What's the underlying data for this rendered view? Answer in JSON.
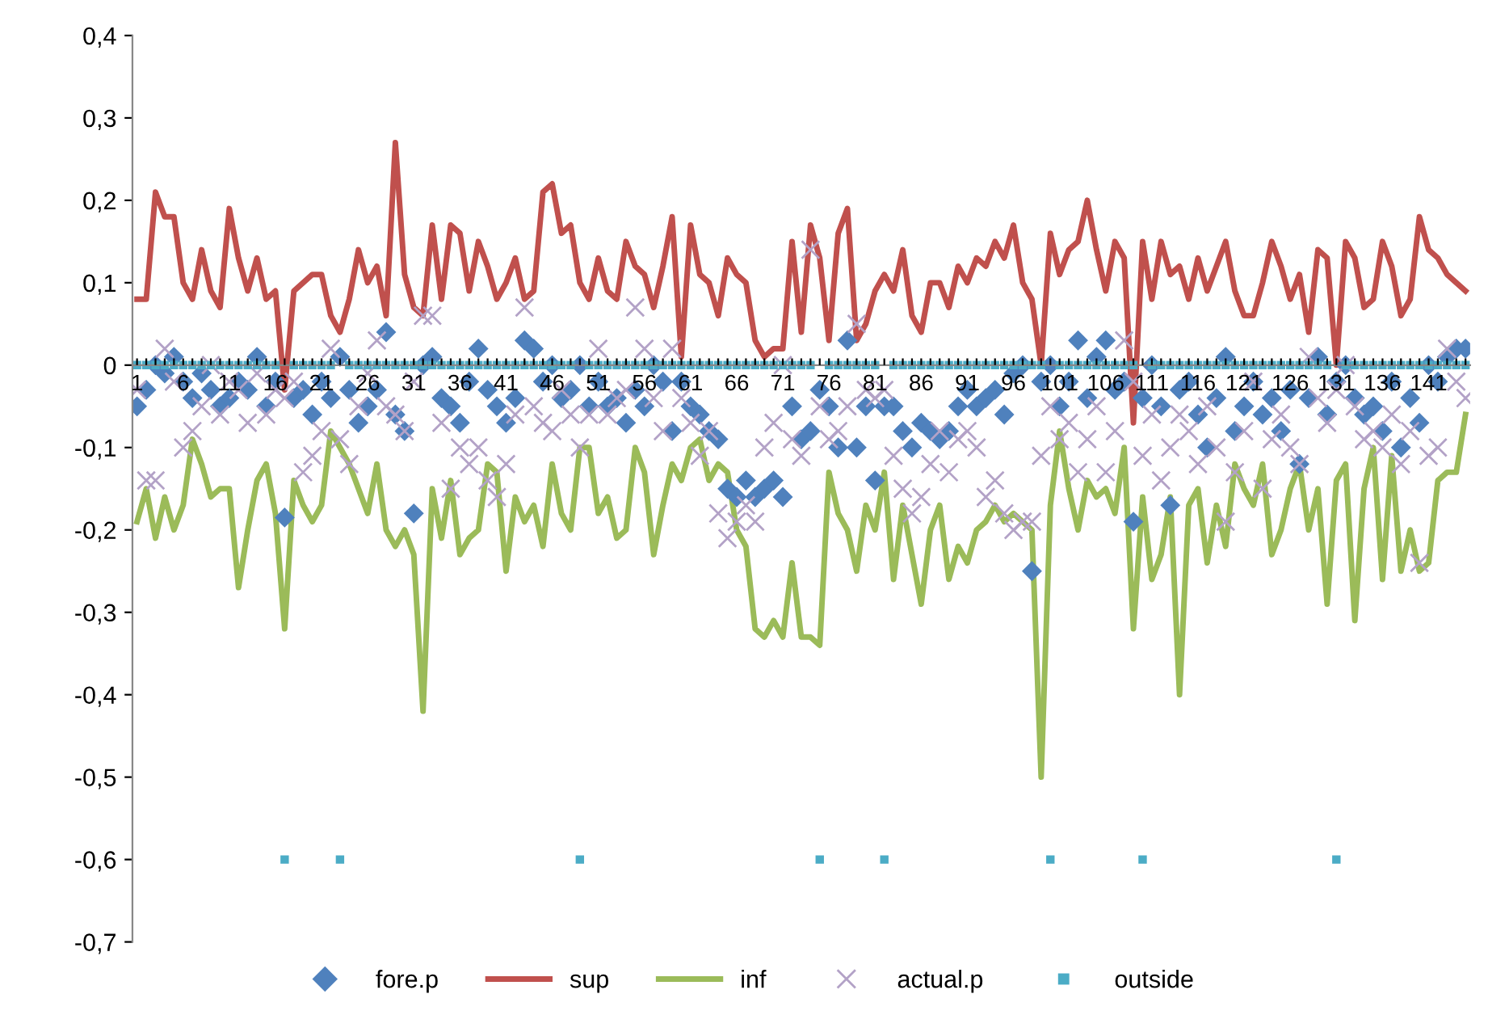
{
  "chart_data": {
    "type": "line",
    "categories": [
      "1",
      null,
      null,
      null,
      null,
      "6",
      null,
      null,
      null,
      null,
      "11",
      null,
      null,
      null,
      null,
      "16",
      null,
      null,
      null,
      null,
      "21",
      null,
      null,
      null,
      null,
      "26",
      null,
      null,
      null,
      null,
      "31",
      null,
      null,
      null,
      null,
      "36",
      null,
      null,
      null,
      null,
      "41",
      null,
      null,
      null,
      null,
      "46",
      null,
      null,
      null,
      null,
      "51",
      null,
      null,
      null,
      null,
      "56",
      null,
      null,
      null,
      null,
      "61",
      null,
      null,
      null,
      null,
      "66",
      null,
      null,
      null,
      null,
      "71",
      null,
      null,
      null,
      null,
      "76",
      null,
      null,
      null,
      null,
      "81",
      null,
      null,
      null,
      null,
      "86",
      null,
      null,
      null,
      null,
      "91",
      null,
      null,
      null,
      null,
      "96",
      null,
      null,
      null,
      null,
      "101",
      null,
      null,
      null,
      null,
      "106",
      null,
      null,
      null,
      null,
      "111",
      null,
      null,
      null,
      null,
      "116",
      null,
      null,
      null,
      null,
      "121",
      null,
      null,
      null,
      null,
      "126",
      null,
      null,
      null,
      null,
      "131",
      null,
      null,
      null,
      null,
      "136",
      null,
      null,
      null,
      null,
      "141",
      null,
      null,
      null,
      null
    ],
    "ylim": [
      -0.7,
      0.4
    ],
    "yticks": [
      {
        "value": -0.7,
        "label": "-0,7"
      },
      {
        "value": -0.6,
        "label": "-0,6"
      },
      {
        "value": -0.5,
        "label": "-0,5"
      },
      {
        "value": -0.4,
        "label": "-0,4"
      },
      {
        "value": -0.3,
        "label": "-0,3"
      },
      {
        "value": -0.2,
        "label": "-0,2"
      },
      {
        "value": -0.1,
        "label": "-0,1"
      },
      0,
      {
        "value": 0.1,
        "label": "0,1"
      },
      {
        "value": 0.2,
        "label": "0,2"
      },
      {
        "value": 0.3,
        "label": "0,3"
      },
      {
        "value": 0.4,
        "label": "0,4"
      }
    ],
    "grid": false,
    "legend": "bottom",
    "series": [
      {
        "name": "fore.p",
        "type": "scatter",
        "marker": "diamond",
        "color": "#4f81bd",
        "values": [
          -0.05,
          -0.03,
          0.0,
          -0.01,
          0.01,
          -0.02,
          -0.04,
          -0.01,
          -0.03,
          -0.05,
          -0.04,
          -0.02,
          -0.03,
          0.01,
          -0.05,
          -0.02,
          -0.185,
          -0.04,
          -0.03,
          -0.06,
          -0.02,
          -0.04,
          0.01,
          -0.03,
          -0.07,
          -0.05,
          -0.03,
          0.04,
          -0.06,
          -0.08,
          -0.18,
          0.0,
          0.01,
          -0.04,
          -0.05,
          -0.07,
          -0.02,
          0.02,
          -0.03,
          -0.05,
          -0.07,
          -0.04,
          0.03,
          0.02,
          -0.02,
          0.0,
          -0.04,
          -0.03,
          0.0,
          -0.05,
          -0.02,
          -0.05,
          -0.04,
          -0.07,
          -0.03,
          -0.05,
          0.0,
          -0.02,
          -0.08,
          -0.02,
          -0.05,
          -0.06,
          -0.08,
          -0.09,
          -0.15,
          -0.16,
          -0.14,
          -0.16,
          -0.15,
          -0.14,
          -0.16,
          -0.05,
          -0.09,
          -0.08,
          -0.03,
          -0.05,
          -0.1,
          0.03,
          -0.1,
          -0.05,
          -0.14,
          -0.05,
          -0.05,
          -0.08,
          -0.1,
          -0.07,
          -0.08,
          -0.09,
          -0.08,
          -0.05,
          -0.03,
          -0.05,
          -0.04,
          -0.03,
          -0.06,
          -0.01,
          0.0,
          -0.25,
          -0.02,
          0.0,
          -0.05,
          -0.02,
          0.03,
          -0.04,
          0.01,
          0.03,
          -0.03,
          -0.02,
          -0.19,
          -0.04,
          0.0,
          -0.05,
          -0.17,
          -0.03,
          -0.02,
          -0.06,
          -0.1,
          -0.04,
          0.01,
          -0.08,
          -0.05,
          -0.02,
          -0.06,
          -0.04,
          -0.08,
          -0.03,
          -0.12,
          -0.04,
          0.01,
          -0.06,
          -0.02,
          0.0,
          -0.04,
          -0.06,
          -0.05,
          -0.08,
          -0.02,
          -0.1,
          -0.04,
          -0.07,
          0.0,
          -0.02,
          0.01,
          0.02,
          0.02
        ]
      },
      {
        "name": "sup",
        "color": "#c0504d",
        "values": [
          0.08,
          0.08,
          0.21,
          0.18,
          0.18,
          0.1,
          0.08,
          0.14,
          0.09,
          0.07,
          0.19,
          0.13,
          0.09,
          0.13,
          0.08,
          0.09,
          -0.03,
          0.09,
          0.1,
          0.11,
          0.11,
          0.06,
          0.04,
          0.08,
          0.14,
          0.1,
          0.12,
          0.06,
          0.27,
          0.11,
          0.07,
          0.06,
          0.17,
          0.08,
          0.17,
          0.16,
          0.09,
          0.15,
          0.12,
          0.08,
          0.1,
          0.13,
          0.08,
          0.09,
          0.21,
          0.22,
          0.16,
          0.17,
          0.1,
          0.08,
          0.13,
          0.09,
          0.08,
          0.15,
          0.12,
          0.11,
          0.07,
          0.12,
          0.18,
          0.01,
          0.17,
          0.11,
          0.1,
          0.06,
          0.13,
          0.11,
          0.1,
          0.03,
          0.01,
          0.02,
          0.02,
          0.15,
          0.04,
          0.17,
          0.13,
          0.03,
          0.16,
          0.19,
          0.03,
          0.05,
          0.09,
          0.11,
          0.09,
          0.14,
          0.06,
          0.04,
          0.1,
          0.1,
          0.07,
          0.12,
          0.1,
          0.13,
          0.12,
          0.15,
          0.13,
          0.17,
          0.1,
          0.08,
          0.0,
          0.16,
          0.11,
          0.14,
          0.15,
          0.2,
          0.14,
          0.09,
          0.15,
          0.13,
          -0.07,
          0.15,
          0.08,
          0.15,
          0.11,
          0.12,
          0.08,
          0.13,
          0.09,
          0.12,
          0.15,
          0.09,
          0.06,
          0.06,
          0.1,
          0.15,
          0.12,
          0.08,
          0.11,
          0.04,
          0.14,
          0.13,
          0.0,
          0.15,
          0.13,
          0.07,
          0.08,
          0.15,
          0.12,
          0.06,
          0.08,
          0.18,
          0.14,
          0.13,
          0.11,
          0.1,
          0.09
        ]
      },
      {
        "name": "inf",
        "color": "#9bbb59",
        "values": [
          -0.19,
          -0.15,
          -0.21,
          -0.16,
          -0.2,
          -0.17,
          -0.09,
          -0.12,
          -0.16,
          -0.15,
          -0.15,
          -0.27,
          -0.2,
          -0.14,
          -0.12,
          -0.18,
          -0.32,
          -0.14,
          -0.17,
          -0.19,
          -0.17,
          -0.08,
          -0.1,
          -0.12,
          -0.15,
          -0.18,
          -0.12,
          -0.2,
          -0.22,
          -0.2,
          -0.23,
          -0.42,
          -0.15,
          -0.21,
          -0.14,
          -0.23,
          -0.21,
          -0.2,
          -0.12,
          -0.13,
          -0.25,
          -0.16,
          -0.19,
          -0.17,
          -0.22,
          -0.12,
          -0.18,
          -0.2,
          -0.1,
          -0.1,
          -0.18,
          -0.16,
          -0.21,
          -0.2,
          -0.1,
          -0.13,
          -0.23,
          -0.17,
          -0.12,
          -0.14,
          -0.1,
          -0.09,
          -0.14,
          -0.12,
          -0.13,
          -0.2,
          -0.22,
          -0.32,
          -0.33,
          -0.31,
          -0.33,
          -0.24,
          -0.33,
          -0.33,
          -0.34,
          -0.13,
          -0.18,
          -0.2,
          -0.25,
          -0.17,
          -0.2,
          -0.13,
          -0.26,
          -0.17,
          -0.23,
          -0.29,
          -0.2,
          -0.17,
          -0.26,
          -0.22,
          -0.24,
          -0.2,
          -0.19,
          -0.17,
          -0.19,
          -0.18,
          -0.19,
          -0.2,
          -0.5,
          -0.17,
          -0.08,
          -0.15,
          -0.2,
          -0.14,
          -0.16,
          -0.15,
          -0.18,
          -0.1,
          -0.32,
          -0.16,
          -0.26,
          -0.23,
          -0.16,
          -0.4,
          -0.17,
          -0.15,
          -0.24,
          -0.17,
          -0.22,
          -0.12,
          -0.15,
          -0.17,
          -0.12,
          -0.23,
          -0.2,
          -0.15,
          -0.12,
          -0.2,
          -0.15,
          -0.29,
          -0.14,
          -0.12,
          -0.31,
          -0.15,
          -0.1,
          -0.26,
          -0.11,
          -0.25,
          -0.2,
          -0.25,
          -0.24,
          -0.14,
          -0.13,
          -0.13,
          -0.06
        ]
      },
      {
        "name": "actual.p",
        "type": "scatter",
        "marker": "cross",
        "color": "#b3a2c7",
        "values": [
          -0.03,
          -0.14,
          -0.14,
          0.02,
          -0.02,
          -0.1,
          -0.08,
          -0.05,
          0.0,
          -0.06,
          -0.02,
          -0.03,
          -0.07,
          -0.01,
          -0.06,
          -0.03,
          -0.04,
          -0.02,
          -0.13,
          -0.11,
          -0.08,
          0.02,
          -0.09,
          -0.12,
          -0.05,
          -0.01,
          0.03,
          -0.05,
          -0.06,
          -0.08,
          -0.02,
          0.06,
          0.06,
          -0.07,
          -0.15,
          -0.1,
          -0.12,
          -0.1,
          -0.14,
          -0.16,
          -0.12,
          -0.06,
          0.07,
          -0.05,
          -0.07,
          -0.08,
          -0.03,
          -0.06,
          -0.1,
          -0.06,
          0.02,
          -0.06,
          -0.04,
          -0.03,
          0.07,
          0.02,
          -0.04,
          -0.08,
          0.02,
          -0.04,
          -0.07,
          -0.11,
          -0.08,
          -0.18,
          -0.21,
          -0.19,
          -0.17,
          -0.19,
          -0.1,
          -0.07,
          0.0,
          -0.09,
          -0.11,
          0.14,
          -0.05,
          -0.09,
          -0.08,
          -0.05,
          0.05,
          -0.03,
          -0.04,
          -0.03,
          -0.11,
          -0.15,
          -0.18,
          -0.16,
          -0.12,
          -0.08,
          -0.13,
          -0.09,
          -0.08,
          -0.1,
          -0.16,
          -0.14,
          -0.18,
          -0.2,
          -0.19,
          -0.19,
          -0.11,
          -0.05,
          -0.09,
          -0.07,
          -0.13,
          -0.09,
          -0.05,
          -0.13,
          -0.08,
          0.03,
          -0.02,
          -0.11,
          -0.06,
          -0.14,
          -0.1,
          -0.06,
          -0.08,
          -0.12,
          -0.05,
          -0.1,
          -0.19,
          -0.13,
          -0.08,
          -0.02,
          -0.15,
          -0.09,
          -0.06,
          -0.1,
          -0.12,
          0.01,
          -0.04,
          -0.07,
          -0.03,
          0.0,
          -0.05,
          -0.09,
          -0.08,
          -0.1,
          -0.06,
          -0.12,
          -0.08,
          -0.24,
          -0.11,
          -0.1,
          0.02,
          -0.02,
          -0.04
        ]
      },
      {
        "name": "outside",
        "type": "scatter",
        "marker": "square",
        "color": "#4bacc6",
        "values": [
          0,
          0,
          0,
          0,
          0,
          0,
          0,
          0,
          0,
          0,
          0,
          0,
          0,
          0,
          0,
          0,
          -0.6,
          0,
          0,
          0,
          0,
          0,
          -0.6,
          0,
          0,
          0,
          0,
          0,
          0,
          0,
          0,
          0,
          0,
          0,
          0,
          0,
          0,
          0,
          0,
          0,
          0,
          0,
          0,
          0,
          0,
          0,
          0,
          0,
          -0.6,
          0,
          0,
          0,
          0,
          0,
          0,
          0,
          0,
          0,
          0,
          0,
          0,
          0,
          0,
          0,
          0,
          0,
          0,
          0,
          0,
          0,
          0,
          0,
          0,
          0,
          -0.6,
          0,
          0,
          0,
          0,
          0,
          0,
          -0.6,
          0,
          0,
          0,
          0,
          0,
          0,
          0,
          0,
          0,
          0,
          0,
          0,
          0,
          0,
          0,
          0,
          0,
          -0.6,
          0,
          0,
          0,
          0,
          0,
          0,
          0,
          0,
          0,
          -0.6,
          0,
          0,
          0,
          0,
          0,
          0,
          0,
          0,
          0,
          0,
          0,
          0,
          0,
          0,
          0,
          0,
          0,
          0,
          0,
          0,
          -0.6,
          0,
          0,
          0,
          0,
          0,
          0,
          0,
          0,
          0,
          0,
          0,
          0,
          0,
          0
        ]
      }
    ]
  }
}
